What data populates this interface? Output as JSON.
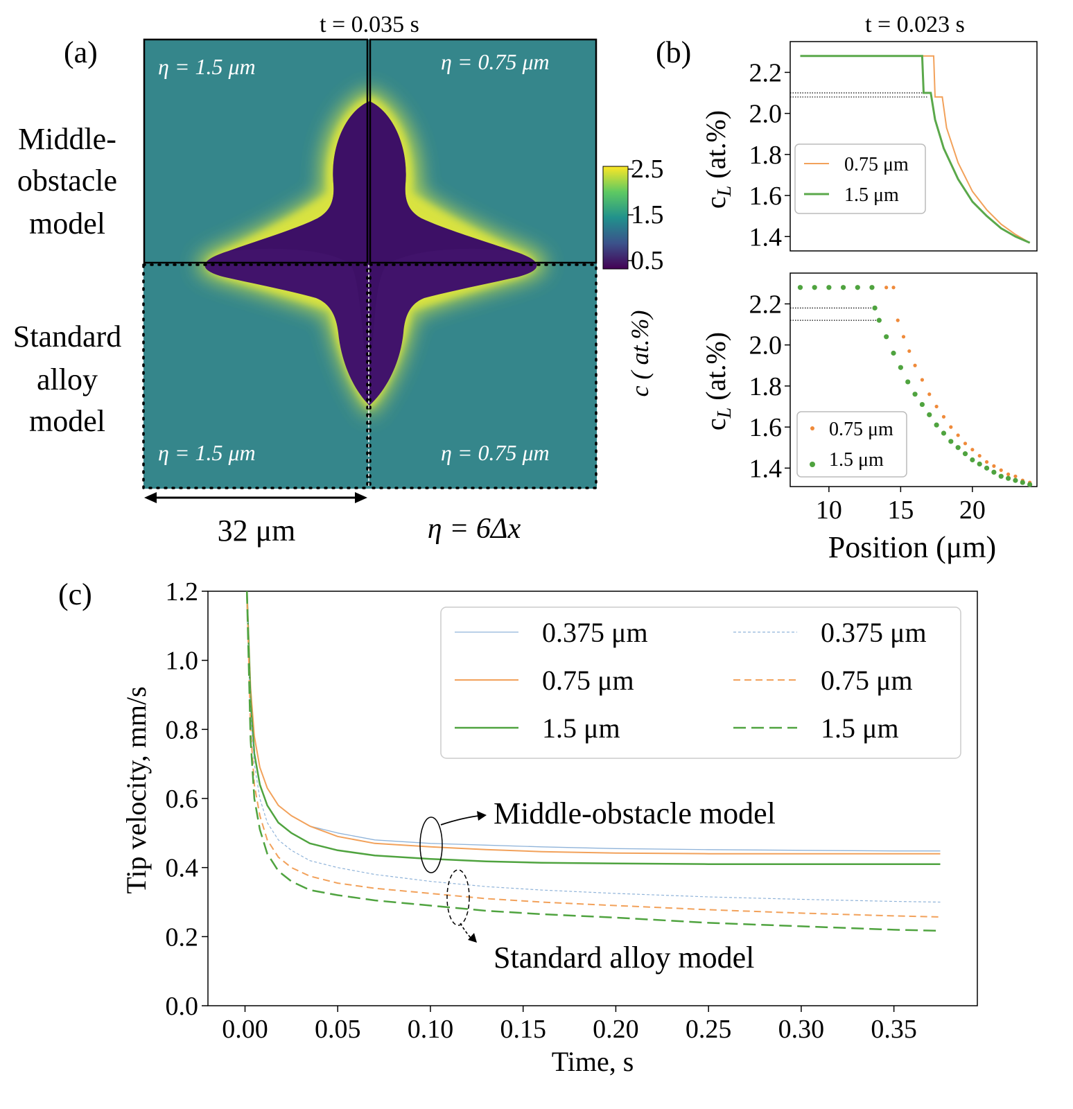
{
  "panel_labels": {
    "a": "(a)",
    "b": "(b)",
    "c": "(c)"
  },
  "panel_a": {
    "time_label": "t = 0.035 s",
    "row_labels": [
      [
        "Middle-",
        "obstacle",
        "model"
      ],
      [
        "Standard",
        "alloy",
        "model"
      ]
    ],
    "quadrant_labels": [
      "η = 1.5 μm",
      "η = 0.75 μm",
      "η = 1.5 μm",
      "η = 0.75 μm"
    ],
    "scale_label": "32 μm",
    "eta_relation": "η = 6Δx",
    "colorbar": {
      "ticks": [
        "2.5",
        "1.5",
        "0.5"
      ],
      "label": "c ( at.%)",
      "colors": [
        "#fde725",
        "#5ec962",
        "#21918c",
        "#3b528b",
        "#440154"
      ]
    },
    "background_color": "#3a8a8a",
    "solid_color": "#41136b",
    "halo_color": "#d6e43a"
  },
  "panel_b": {
    "time_label": "t = 0.023 s",
    "ylabel": "c_L (at.%)",
    "xlabel": "Position (μm)",
    "x_ticks": [
      "10",
      "15",
      "20"
    ],
    "top": {
      "y_ticks": [
        "2.2",
        "2.0",
        "1.8",
        "1.6",
        "1.4"
      ],
      "legend": [
        "0.75 μm",
        "1.5 μm"
      ]
    },
    "bottom": {
      "y_ticks": [
        "2.2",
        "2.0",
        "1.8",
        "1.6",
        "1.4"
      ],
      "legend": [
        "0.75 μm",
        "1.5 μm"
      ]
    }
  },
  "chart_data": [
    {
      "type": "line",
      "panel": "b-top",
      "xlim": [
        7.3,
        24.5
      ],
      "ylim": [
        1.33,
        2.35
      ],
      "series": [
        {
          "name": "0.75 μm",
          "color": "#f2a15a",
          "x": [
            8,
            9,
            10,
            11,
            12,
            13,
            14,
            15,
            16,
            17,
            17.3,
            17.4,
            17.9,
            18.2,
            19,
            20,
            21,
            22,
            23,
            24
          ],
          "y": [
            2.28,
            2.28,
            2.28,
            2.28,
            2.28,
            2.28,
            2.28,
            2.28,
            2.28,
            2.28,
            2.28,
            2.08,
            2.08,
            1.93,
            1.76,
            1.62,
            1.53,
            1.46,
            1.41,
            1.37
          ]
        },
        {
          "name": "1.5 μm",
          "color": "#5aa84a",
          "x": [
            8,
            9,
            10,
            11,
            12,
            13,
            14,
            15,
            16,
            16.5,
            16.6,
            17.1,
            17.4,
            18,
            19,
            20,
            21,
            22,
            23,
            24
          ],
          "y": [
            2.28,
            2.28,
            2.28,
            2.28,
            2.28,
            2.28,
            2.28,
            2.28,
            2.28,
            2.28,
            2.1,
            2.1,
            1.97,
            1.83,
            1.68,
            1.57,
            1.5,
            1.44,
            1.4,
            1.37
          ]
        }
      ],
      "reference_lines": [
        2.1,
        2.08
      ]
    },
    {
      "type": "scatter",
      "panel": "b-bottom",
      "xlim": [
        7.3,
        24.5
      ],
      "ylim": [
        1.31,
        2.35
      ],
      "series": [
        {
          "name": "0.75 μm",
          "color": "#ef8a3a",
          "x": [
            8,
            9,
            10,
            11,
            12,
            13,
            14,
            14.5,
            14.8,
            15.2,
            15.6,
            16,
            16.5,
            17,
            17.5,
            18,
            18.5,
            19,
            19.5,
            20,
            20.5,
            21,
            21.5,
            22,
            22.5,
            23,
            23.5,
            24
          ],
          "y": [
            2.28,
            2.28,
            2.28,
            2.28,
            2.28,
            2.28,
            2.28,
            2.28,
            2.12,
            2.04,
            1.97,
            1.9,
            1.83,
            1.76,
            1.7,
            1.65,
            1.6,
            1.56,
            1.52,
            1.49,
            1.46,
            1.43,
            1.41,
            1.39,
            1.37,
            1.36,
            1.34,
            1.33
          ]
        },
        {
          "name": "1.5 μm",
          "color": "#4fa33f",
          "x": [
            8,
            9,
            10,
            11,
            12,
            13,
            13.2,
            13.5,
            14,
            14.5,
            15,
            15.5,
            16,
            16.5,
            17,
            17.5,
            18,
            18.5,
            19,
            19.5,
            20,
            20.5,
            21,
            21.5,
            22,
            22.5,
            23,
            23.5,
            24
          ],
          "y": [
            2.28,
            2.28,
            2.28,
            2.28,
            2.28,
            2.28,
            2.18,
            2.12,
            2.04,
            1.96,
            1.89,
            1.82,
            1.76,
            1.71,
            1.66,
            1.61,
            1.57,
            1.53,
            1.5,
            1.47,
            1.44,
            1.42,
            1.4,
            1.38,
            1.36,
            1.35,
            1.34,
            1.33,
            1.32
          ]
        }
      ],
      "reference_lines": [
        2.18,
        2.12
      ]
    },
    {
      "type": "line",
      "panel": "c",
      "xlabel": "Time, s",
      "ylabel": "Tip velocity, mm/s",
      "xlim": [
        -0.02,
        0.395
      ],
      "ylim": [
        0.0,
        1.2
      ],
      "x_ticks": [
        "0.00",
        "0.05",
        "0.10",
        "0.15",
        "0.20",
        "0.25",
        "0.30",
        "0.35"
      ],
      "y_ticks": [
        "0.0",
        "0.2",
        "0.4",
        "0.6",
        "0.8",
        "1.0",
        "1.2"
      ],
      "x": [
        0.001,
        0.003,
        0.005,
        0.008,
        0.012,
        0.018,
        0.025,
        0.035,
        0.05,
        0.07,
        0.1,
        0.13,
        0.16,
        0.2,
        0.25,
        0.3,
        0.35,
        0.375
      ],
      "series": [
        {
          "name": "0.375 μm",
          "group": "Middle-obstacle model",
          "color": "#8fb3d9",
          "dash": "none",
          "width": 1.3,
          "y": [
            1.2,
            0.92,
            0.78,
            0.69,
            0.63,
            0.58,
            0.55,
            0.52,
            0.5,
            0.48,
            0.47,
            0.465,
            0.46,
            0.455,
            0.452,
            0.45,
            0.448,
            0.448
          ]
        },
        {
          "name": "0.75 μm",
          "group": "Middle-obstacle model",
          "color": "#f2a15a",
          "dash": "none",
          "width": 2,
          "y": [
            1.2,
            0.92,
            0.78,
            0.69,
            0.63,
            0.58,
            0.55,
            0.52,
            0.49,
            0.47,
            0.46,
            0.452,
            0.446,
            0.442,
            0.44,
            0.44,
            0.44,
            0.44
          ]
        },
        {
          "name": "1.5 μm",
          "group": "Middle-obstacle model",
          "color": "#4fa33f",
          "dash": "none",
          "width": 2.5,
          "y": [
            1.2,
            0.88,
            0.73,
            0.64,
            0.58,
            0.53,
            0.5,
            0.47,
            0.45,
            0.435,
            0.425,
            0.418,
            0.414,
            0.412,
            0.41,
            0.41,
            0.41,
            0.41
          ]
        },
        {
          "name": "0.375 μm",
          "group": "Standard alloy model",
          "color": "#8fb3d9",
          "dash": "4 3",
          "width": 1.2,
          "y": [
            1.2,
            0.85,
            0.7,
            0.6,
            0.53,
            0.48,
            0.45,
            0.42,
            0.4,
            0.38,
            0.36,
            0.345,
            0.335,
            0.325,
            0.315,
            0.308,
            0.302,
            0.3
          ]
        },
        {
          "name": "0.75 μm",
          "group": "Standard alloy model",
          "color": "#f2a15a",
          "dash": "10 6",
          "width": 2,
          "y": [
            1.2,
            0.8,
            0.64,
            0.55,
            0.48,
            0.43,
            0.4,
            0.375,
            0.355,
            0.34,
            0.325,
            0.31,
            0.3,
            0.29,
            0.278,
            0.268,
            0.26,
            0.257
          ]
        },
        {
          "name": "1.5 μm",
          "group": "Standard alloy model",
          "color": "#4fa33f",
          "dash": "18 8",
          "width": 2.5,
          "y": [
            1.2,
            0.77,
            0.6,
            0.51,
            0.44,
            0.39,
            0.36,
            0.335,
            0.32,
            0.305,
            0.29,
            0.275,
            0.265,
            0.255,
            0.24,
            0.23,
            0.22,
            0.217
          ]
        }
      ],
      "legend": {
        "placement": "top-right",
        "columns": [
          [
            "0.375 μm",
            "0.75 μm",
            "1.5 μm"
          ],
          [
            "0.375 μm",
            "0.75 μm",
            "1.5 μm"
          ]
        ]
      },
      "annotations": [
        "Middle-obstacle model",
        "Standard alloy model"
      ]
    }
  ]
}
